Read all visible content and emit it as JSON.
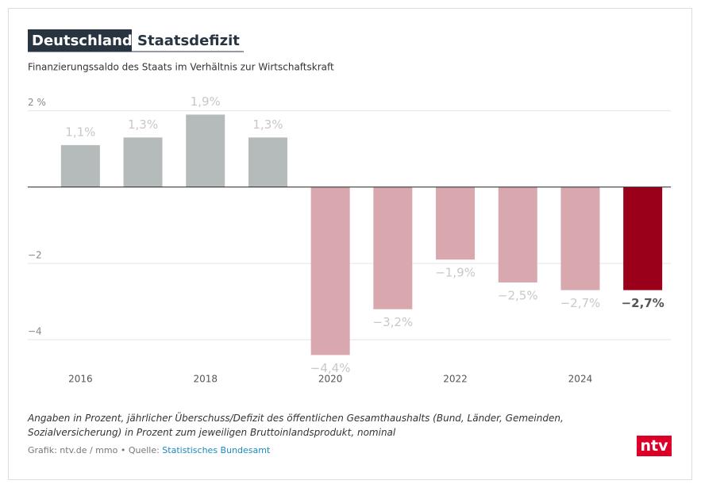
{
  "chart_data": {
    "type": "bar",
    "title_tag": "Deutschland",
    "title": "Staatsdefizit",
    "subtitle": "Finanzierungssaldo des Staats im Verhältnis zur Wirtschaftskraft",
    "categories": [
      "2016",
      null,
      "2018",
      null,
      "2020",
      null,
      "2022",
      null,
      "2024",
      null
    ],
    "values": [
      1.1,
      1.3,
      1.9,
      1.3,
      -4.4,
      -3.2,
      -1.9,
      -2.5,
      -2.7,
      -2.7
    ],
    "value_labels": [
      "1,1%",
      "1,3%",
      "1,9%",
      "1,3%",
      "−4,4%",
      "−3,2%",
      "−1,9%",
      "−2,5%",
      "−2,7%",
      "−2,7%"
    ],
    "colors": [
      "#b5bbbb",
      "#b5bbbb",
      "#b5bbbb",
      "#b5bbbb",
      "#d9a7ae",
      "#d9a7ae",
      "#d9a7ae",
      "#d9a7ae",
      "#d9a7ae",
      "#9a0019"
    ],
    "highlight": 9,
    "ylim": [
      -4.6,
      2.2
    ],
    "yticks": [
      {
        "value": 2,
        "label": "2 %"
      },
      {
        "value": -2,
        "label": "−2"
      },
      {
        "value": -4,
        "label": "−4"
      }
    ],
    "grid": true,
    "note": "Angaben in Prozent, jährlicher Überschuss/Defizit des öffentlichen Gesamthaushalts (Bund, Länder, Gemeinden, Sozialversicherung) in Prozent zum jeweiligen Bruttoinlandsprodukt, nominal",
    "credit": "Grafik: ntv.de / mmo • Quelle: ",
    "source": "Statistisches Bundesamt",
    "logo": "ntv"
  }
}
